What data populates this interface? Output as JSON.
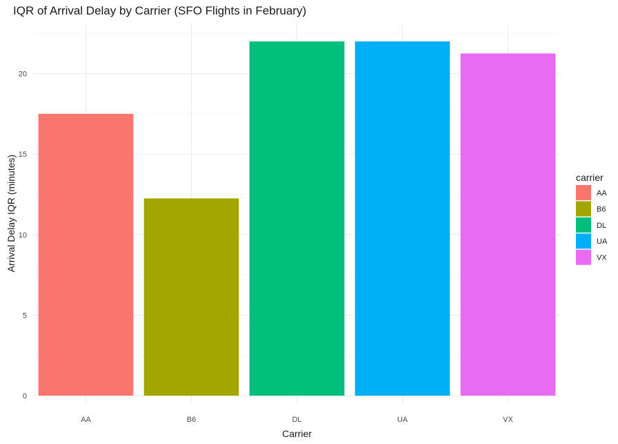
{
  "chart_data": {
    "type": "bar",
    "title": "IQR of Arrival Delay by Carrier (SFO Flights in February)",
    "xlabel": "Carrier",
    "ylabel": "Arrival Delay IQR (minutes)",
    "categories": [
      "AA",
      "B6",
      "DL",
      "UA",
      "VX"
    ],
    "values": [
      17.5,
      12.25,
      22,
      22,
      21.25
    ],
    "colors": [
      "#F8766D",
      "#A3A500",
      "#00BF7D",
      "#00B0F6",
      "#E76BF3"
    ],
    "ylim": [
      0,
      23
    ],
    "yticks": [
      0,
      5,
      10,
      15,
      20
    ],
    "grid": true,
    "legend": {
      "title": "carrier",
      "position": "right",
      "entries": [
        "AA",
        "B6",
        "DL",
        "UA",
        "VX"
      ]
    }
  }
}
